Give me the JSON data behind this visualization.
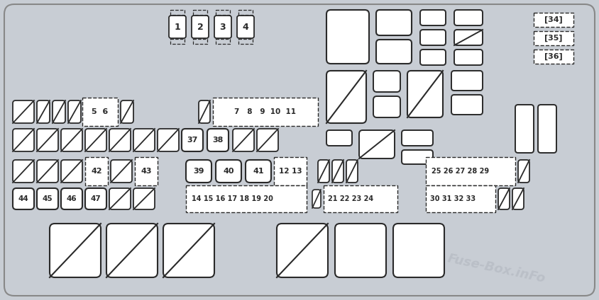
{
  "bg_color": "#c8cdd4",
  "white": "#ffffff",
  "lc": "#2a2a2a",
  "watermark": "Fuse-Box.inFo"
}
